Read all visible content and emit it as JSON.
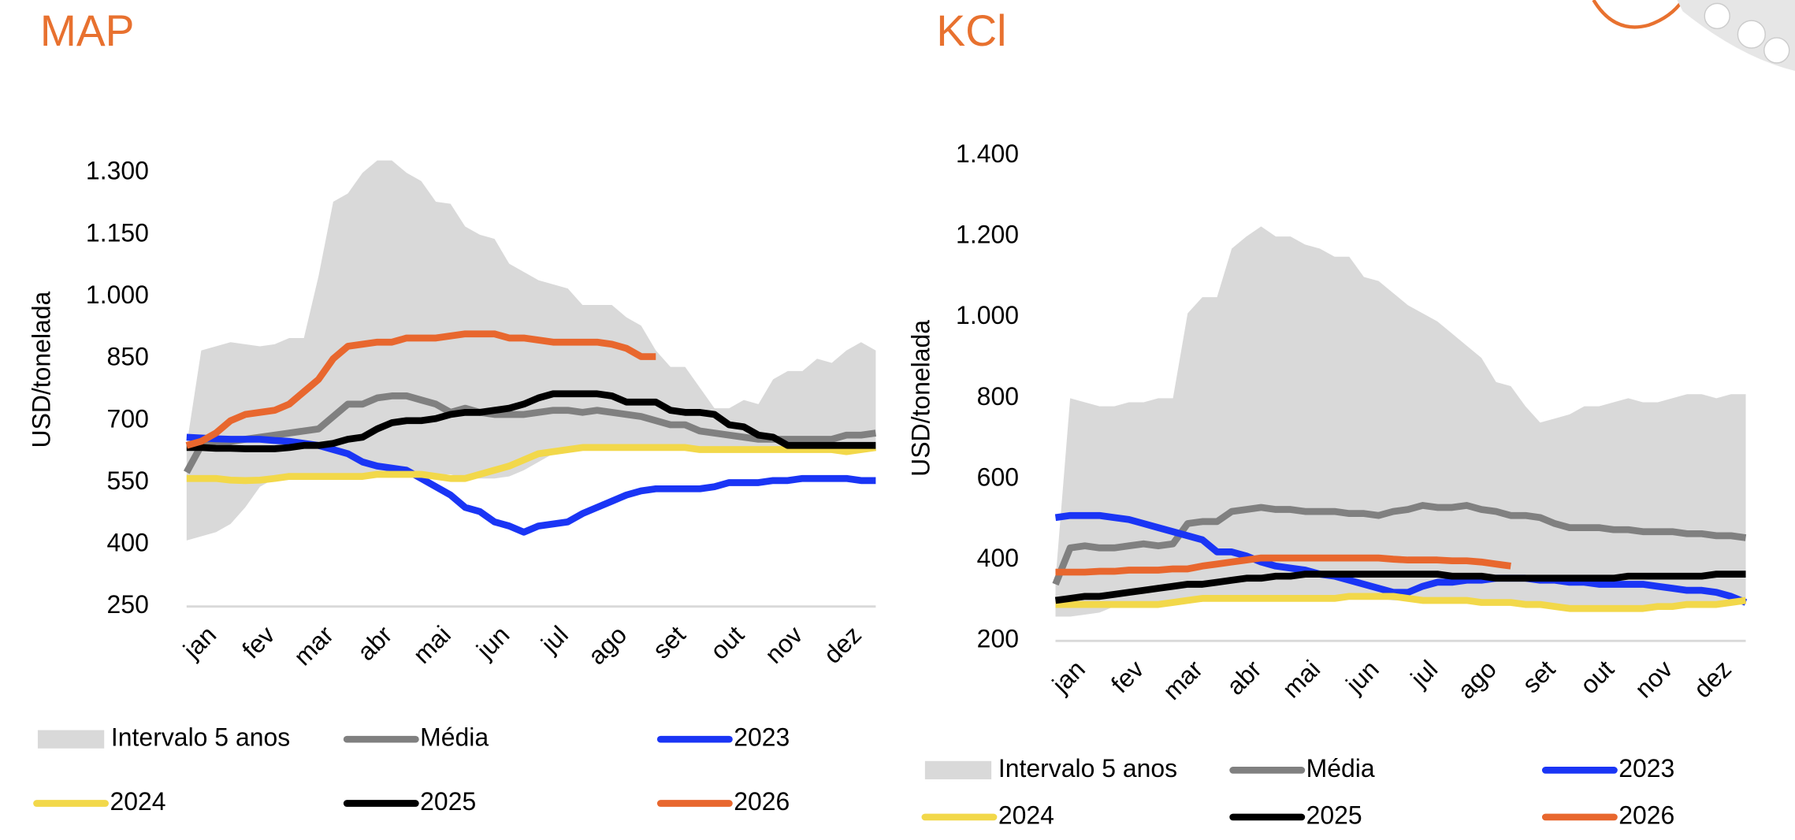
{
  "chart_data": [
    {
      "type": "line",
      "title": "MAP",
      "y_label": "USD/tonelada",
      "categories": [
        "jan",
        null,
        null,
        null,
        "fev",
        null,
        null,
        null,
        "mar",
        null,
        null,
        null,
        "abr",
        null,
        null,
        null,
        "mai",
        null,
        null,
        null,
        "jun",
        null,
        null,
        null,
        "jul",
        null,
        null,
        null,
        "ago",
        null,
        null,
        null,
        "set",
        null,
        null,
        null,
        "out",
        null,
        null,
        null,
        "nov",
        null,
        null,
        null,
        "dez",
        null,
        null,
        null
      ],
      "ylim": [
        250,
        1300
      ],
      "yticks": [
        250,
        400,
        550,
        700,
        850,
        {
          "value": 1000,
          "label": "1.000"
        },
        {
          "value": 1150,
          "label": "1.150"
        },
        {
          "value": 1300,
          "label": "1.300"
        }
      ],
      "series": [
        {
          "name": "Intervalo 5 anos",
          "color": "#d9d9d9",
          "type": "range",
          "low": [
            410,
            420,
            430,
            450,
            490,
            540,
            560,
            560,
            565,
            570,
            570,
            570,
            570,
            570,
            570,
            570,
            570,
            570,
            570,
            560,
            560,
            560,
            565,
            580,
            600,
            620,
            625,
            630,
            630,
            630,
            630,
            630,
            630,
            630,
            630,
            630,
            630,
            630,
            630,
            630,
            630,
            630,
            630,
            630,
            630,
            630,
            640,
            640
          ],
          "high": [
            640,
            870,
            880,
            890,
            885,
            880,
            885,
            900,
            900,
            1050,
            1230,
            1250,
            1300,
            1330,
            1330,
            1300,
            1280,
            1230,
            1225,
            1170,
            1150,
            1140,
            1080,
            1060,
            1040,
            1030,
            1020,
            980,
            980,
            980,
            950,
            930,
            870,
            830,
            830,
            780,
            730,
            730,
            750,
            740,
            800,
            820,
            820,
            850,
            840,
            870,
            890,
            870
          ]
        },
        {
          "name": "Média",
          "color": "#808080",
          "values": [
            575,
            640,
            650,
            650,
            655,
            660,
            665,
            670,
            675,
            680,
            710,
            740,
            740,
            755,
            760,
            760,
            750,
            740,
            720,
            730,
            720,
            715,
            715,
            715,
            720,
            725,
            725,
            720,
            725,
            720,
            715,
            710,
            700,
            690,
            690,
            675,
            670,
            665,
            660,
            655,
            655,
            655,
            655,
            655,
            655,
            665,
            665,
            670
          ]
        },
        {
          "name": "2023",
          "color": "#1a35f5",
          "values": [
            660,
            658,
            656,
            655,
            655,
            655,
            652,
            650,
            645,
            640,
            630,
            620,
            600,
            590,
            585,
            580,
            560,
            540,
            520,
            490,
            480,
            455,
            445,
            430,
            445,
            450,
            455,
            475,
            490,
            505,
            520,
            530,
            535,
            535,
            535,
            535,
            540,
            550,
            550,
            550,
            555,
            555,
            560,
            560,
            560,
            560,
            555,
            555
          ]
        },
        {
          "name": "2024",
          "color": "#f2d84a",
          "values": [
            560,
            560,
            560,
            556,
            555,
            556,
            560,
            565,
            565,
            565,
            565,
            565,
            565,
            570,
            570,
            570,
            570,
            565,
            560,
            560,
            570,
            580,
            590,
            605,
            620,
            625,
            630,
            635,
            635,
            635,
            635,
            635,
            635,
            635,
            635,
            630,
            630,
            630,
            630,
            630,
            630,
            630,
            630,
            630,
            630,
            625,
            630,
            635
          ]
        },
        {
          "name": "2025",
          "color": "#000000",
          "values": [
            635,
            635,
            633,
            633,
            632,
            632,
            632,
            635,
            640,
            640,
            645,
            655,
            660,
            680,
            695,
            700,
            700,
            705,
            715,
            720,
            720,
            725,
            730,
            740,
            755,
            765,
            765,
            765,
            765,
            760,
            745,
            745,
            745,
            725,
            720,
            720,
            715,
            690,
            685,
            665,
            660,
            640,
            640,
            640,
            640,
            640,
            640,
            640
          ]
        },
        {
          "name": "2026",
          "color": "#e8672e",
          "values": [
            640,
            650,
            670,
            700,
            715,
            720,
            725,
            740,
            770,
            800,
            850,
            880,
            885,
            890,
            890,
            900,
            900,
            900,
            905,
            910,
            910,
            910,
            900,
            900,
            895,
            890,
            890,
            890,
            890,
            885,
            875,
            855,
            855,
            null,
            null,
            null,
            null,
            null,
            null,
            null,
            null,
            null,
            null,
            null,
            null,
            null,
            null,
            null
          ]
        }
      ]
    },
    {
      "type": "line",
      "title": "KCl",
      "y_label": "USD/tonelada",
      "categories": [
        "jan",
        null,
        null,
        null,
        "fev",
        null,
        null,
        null,
        "mar",
        null,
        null,
        null,
        "abr",
        null,
        null,
        null,
        "mai",
        null,
        null,
        null,
        "jun",
        null,
        null,
        null,
        "jul",
        null,
        null,
        null,
        "ago",
        null,
        null,
        null,
        "set",
        null,
        null,
        null,
        "out",
        null,
        null,
        null,
        "nov",
        null,
        null,
        null,
        "dez",
        null,
        null,
        null
      ],
      "ylim": [
        200,
        1400
      ],
      "yticks": [
        200,
        400,
        600,
        800,
        {
          "value": 1000,
          "label": "1.000"
        },
        {
          "value": 1200,
          "label": "1.200"
        },
        {
          "value": 1400,
          "label": "1.400"
        }
      ],
      "series": [
        {
          "name": "Intervalo 5 anos",
          "color": "#d9d9d9",
          "type": "range",
          "low": [
            260,
            260,
            265,
            270,
            285,
            290,
            290,
            290,
            295,
            300,
            305,
            305,
            305,
            305,
            305,
            305,
            305,
            305,
            305,
            305,
            305,
            305,
            305,
            300,
            300,
            295,
            295,
            295,
            295,
            290,
            290,
            290,
            290,
            285,
            280,
            280,
            280,
            280,
            280,
            280,
            280,
            285,
            285,
            290,
            290,
            290,
            295,
            295
          ],
          "high": [
            350,
            800,
            790,
            780,
            780,
            790,
            790,
            800,
            800,
            1010,
            1050,
            1050,
            1170,
            1200,
            1225,
            1200,
            1200,
            1180,
            1170,
            1150,
            1150,
            1100,
            1090,
            1060,
            1030,
            1010,
            990,
            960,
            930,
            900,
            840,
            830,
            780,
            740,
            750,
            760,
            780,
            780,
            790,
            800,
            790,
            790,
            800,
            810,
            810,
            800,
            810,
            810
          ]
        },
        {
          "name": "Média",
          "color": "#808080",
          "values": [
            340,
            430,
            435,
            430,
            430,
            435,
            440,
            435,
            440,
            490,
            495,
            495,
            520,
            525,
            530,
            525,
            525,
            520,
            520,
            520,
            515,
            515,
            510,
            520,
            525,
            535,
            530,
            530,
            535,
            525,
            520,
            510,
            510,
            505,
            490,
            480,
            480,
            480,
            475,
            475,
            470,
            470,
            470,
            465,
            465,
            460,
            460,
            455
          ]
        },
        {
          "name": "2023",
          "color": "#1a35f5",
          "values": [
            505,
            510,
            510,
            510,
            505,
            500,
            490,
            480,
            470,
            460,
            450,
            420,
            420,
            410,
            395,
            385,
            380,
            375,
            365,
            360,
            350,
            340,
            330,
            320,
            320,
            335,
            345,
            345,
            350,
            350,
            355,
            355,
            355,
            350,
            350,
            345,
            345,
            340,
            340,
            340,
            340,
            335,
            330,
            325,
            325,
            320,
            310,
            295
          ]
        },
        {
          "name": "2024",
          "color": "#f2d84a",
          "values": [
            290,
            290,
            290,
            290,
            290,
            290,
            290,
            290,
            295,
            300,
            305,
            305,
            305,
            305,
            305,
            305,
            305,
            305,
            305,
            305,
            310,
            310,
            310,
            310,
            305,
            300,
            300,
            300,
            300,
            295,
            295,
            295,
            290,
            290,
            285,
            280,
            280,
            280,
            280,
            280,
            280,
            285,
            285,
            290,
            290,
            290,
            295,
            300
          ]
        },
        {
          "name": "2025",
          "color": "#000000",
          "values": [
            300,
            305,
            310,
            310,
            315,
            320,
            325,
            330,
            335,
            340,
            340,
            345,
            350,
            355,
            355,
            360,
            360,
            365,
            365,
            365,
            365,
            365,
            365,
            365,
            365,
            365,
            365,
            360,
            360,
            360,
            355,
            355,
            355,
            355,
            355,
            355,
            355,
            355,
            355,
            360,
            360,
            360,
            360,
            360,
            360,
            365,
            365,
            365
          ]
        },
        {
          "name": "2026",
          "color": "#e8672e",
          "values": [
            370,
            370,
            370,
            372,
            372,
            375,
            375,
            375,
            378,
            378,
            385,
            390,
            395,
            400,
            405,
            405,
            405,
            405,
            405,
            405,
            405,
            405,
            405,
            402,
            400,
            400,
            400,
            398,
            398,
            395,
            390,
            385,
            null,
            null,
            null,
            null,
            null,
            null,
            null,
            null,
            null,
            null,
            null,
            null,
            null,
            null,
            null,
            null
          ]
        }
      ]
    }
  ]
}
